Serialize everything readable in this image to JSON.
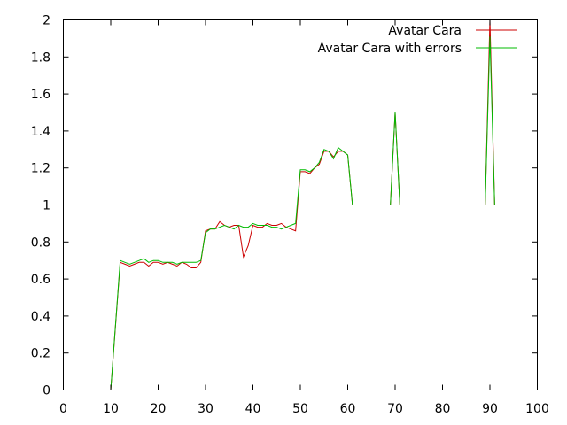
{
  "chart_data": {
    "type": "line",
    "title": "",
    "xlabel": "",
    "ylabel": "",
    "xlim": [
      0,
      100
    ],
    "ylim": [
      0,
      2
    ],
    "x_ticks": [
      "0",
      "10",
      "20",
      "30",
      "40",
      "50",
      "60",
      "70",
      "80",
      "90",
      "100"
    ],
    "y_ticks": [
      "0",
      "0.2",
      "0.4",
      "0.6",
      "0.8",
      "1",
      "1.2",
      "1.4",
      "1.6",
      "1.8",
      "2"
    ],
    "grid": false,
    "legend_position": "top-right",
    "series": [
      {
        "name": "Avatar Cara",
        "color": "#cc0000",
        "x": [
          10,
          12,
          13,
          14,
          15,
          16,
          17,
          18,
          19,
          20,
          21,
          22,
          23,
          24,
          25,
          26,
          27,
          28,
          29,
          30,
          31,
          32,
          33,
          34,
          35,
          36,
          37,
          38,
          39,
          40,
          41,
          42,
          43,
          44,
          45,
          46,
          47,
          48,
          49,
          50,
          51,
          52,
          53,
          54,
          55,
          56,
          57,
          58,
          59,
          60,
          61,
          62,
          63,
          64,
          65,
          66,
          67,
          68,
          69,
          70,
          71,
          72,
          73,
          74,
          75,
          76,
          77,
          78,
          79,
          80,
          81,
          82,
          83,
          84,
          85,
          86,
          87,
          88,
          89,
          90,
          91,
          92,
          93,
          94,
          95,
          96,
          97,
          98,
          99,
          100
        ],
        "y": [
          0,
          0.69,
          0.68,
          0.67,
          0.68,
          0.69,
          0.69,
          0.67,
          0.69,
          0.69,
          0.68,
          0.69,
          0.68,
          0.67,
          0.69,
          0.68,
          0.66,
          0.66,
          0.69,
          0.86,
          0.87,
          0.87,
          0.91,
          0.89,
          0.88,
          0.89,
          0.89,
          0.72,
          0.78,
          0.89,
          0.88,
          0.88,
          0.9,
          0.89,
          0.89,
          0.9,
          0.88,
          0.87,
          0.86,
          1.18,
          1.18,
          1.17,
          1.2,
          1.22,
          1.29,
          1.29,
          1.26,
          1.29,
          1.29,
          1.27,
          1.0,
          1.0,
          1.0,
          1.0,
          1.0,
          1.0,
          1.0,
          1.0,
          1.0,
          1.5,
          1.0,
          1.0,
          1.0,
          1.0,
          1.0,
          1.0,
          1.0,
          1.0,
          1.0,
          1.0,
          1.0,
          1.0,
          1.0,
          1.0,
          1.0,
          1.0,
          1.0,
          1.0,
          1.0,
          2.0,
          1.0,
          1.0,
          1.0,
          1.0,
          1.0,
          1.0,
          1.0,
          1.0,
          1.0,
          1.0
        ]
      },
      {
        "name": "Avatar Cara with errors",
        "color": "#00bb00",
        "x": [
          10,
          12,
          13,
          14,
          15,
          16,
          17,
          18,
          19,
          20,
          21,
          22,
          23,
          24,
          25,
          26,
          27,
          28,
          29,
          30,
          31,
          32,
          33,
          34,
          35,
          36,
          37,
          38,
          39,
          40,
          41,
          42,
          43,
          44,
          45,
          46,
          47,
          48,
          49,
          50,
          51,
          52,
          53,
          54,
          55,
          56,
          57,
          58,
          59,
          60,
          61,
          62,
          63,
          64,
          65,
          66,
          67,
          68,
          69,
          70,
          71,
          72,
          73,
          74,
          75,
          76,
          77,
          78,
          79,
          80,
          81,
          82,
          83,
          84,
          85,
          86,
          87,
          88,
          89,
          90,
          91,
          92,
          93,
          94,
          95,
          96,
          97,
          98,
          99,
          100
        ],
        "y": [
          0,
          0.7,
          0.69,
          0.68,
          0.69,
          0.7,
          0.71,
          0.69,
          0.7,
          0.7,
          0.69,
          0.69,
          0.69,
          0.68,
          0.69,
          0.69,
          0.69,
          0.69,
          0.7,
          0.85,
          0.87,
          0.87,
          0.88,
          0.89,
          0.88,
          0.87,
          0.89,
          0.88,
          0.88,
          0.9,
          0.89,
          0.89,
          0.89,
          0.88,
          0.88,
          0.87,
          0.88,
          0.89,
          0.9,
          1.19,
          1.19,
          1.18,
          1.2,
          1.23,
          1.3,
          1.29,
          1.25,
          1.31,
          1.29,
          1.27,
          1.0,
          1.0,
          1.0,
          1.0,
          1.0,
          1.0,
          1.0,
          1.0,
          1.0,
          1.5,
          1.0,
          1.0,
          1.0,
          1.0,
          1.0,
          1.0,
          1.0,
          1.0,
          1.0,
          1.0,
          1.0,
          1.0,
          1.0,
          1.0,
          1.0,
          1.0,
          1.0,
          1.0,
          1.0,
          1.91,
          1.0,
          1.0,
          1.0,
          1.0,
          1.0,
          1.0,
          1.0,
          1.0,
          1.0,
          1.0
        ]
      }
    ]
  }
}
